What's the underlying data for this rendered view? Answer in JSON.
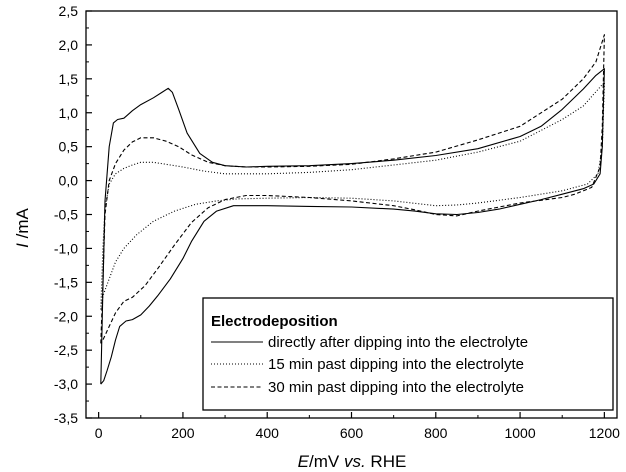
{
  "chart_data": {
    "type": "line",
    "xlabel": {
      "var": "E",
      "unit": "/mV ",
      "vs": "vs.",
      "ref": " RHE"
    },
    "ylabel": {
      "var": "I",
      "unit": " /mA"
    },
    "xlim": [
      -30,
      1230
    ],
    "ylim": [
      -3.5,
      2.5
    ],
    "x_ticks": [
      0,
      200,
      400,
      600,
      800,
      1000,
      1200
    ],
    "x_tick_labels": [
      "0",
      "200",
      "400",
      "600",
      "800",
      "1000",
      "1200"
    ],
    "y_ticks": [
      -3.5,
      -3.0,
      -2.5,
      -2.0,
      -1.5,
      -1.0,
      -0.5,
      0.0,
      0.5,
      1.0,
      1.5,
      2.0,
      2.5
    ],
    "y_tick_labels": [
      "-3,5",
      "-3,0",
      "-2,5",
      "-2,0",
      "-1,5",
      "-1,0",
      "-0,5",
      "0,0",
      "0,5",
      "1,0",
      "1,5",
      "2,0",
      "2,5"
    ],
    "grid": false,
    "legend": {
      "title": "Electrodeposition",
      "placement": "bottom-right"
    },
    "series": [
      {
        "name": "directly after dipping into the electrolyte",
        "style": "solid",
        "anodic": [
          [
            5,
            -3.0
          ],
          [
            10,
            -1.6
          ],
          [
            15,
            -0.3
          ],
          [
            25,
            0.5
          ],
          [
            35,
            0.85
          ],
          [
            45,
            0.9
          ],
          [
            60,
            0.92
          ],
          [
            80,
            1.03
          ],
          [
            100,
            1.12
          ],
          [
            130,
            1.22
          ],
          [
            150,
            1.3
          ],
          [
            165,
            1.36
          ],
          [
            175,
            1.3
          ],
          [
            190,
            1.05
          ],
          [
            210,
            0.7
          ],
          [
            240,
            0.4
          ],
          [
            270,
            0.27
          ],
          [
            300,
            0.22
          ],
          [
            350,
            0.2
          ],
          [
            400,
            0.21
          ],
          [
            500,
            0.22
          ],
          [
            600,
            0.25
          ],
          [
            700,
            0.3
          ],
          [
            800,
            0.37
          ],
          [
            900,
            0.47
          ],
          [
            1000,
            0.65
          ],
          [
            1050,
            0.8
          ],
          [
            1100,
            1.05
          ],
          [
            1150,
            1.35
          ],
          [
            1180,
            1.55
          ],
          [
            1200,
            1.65
          ]
        ],
        "cathodic": [
          [
            1200,
            1.65
          ],
          [
            1195,
            0.5
          ],
          [
            1190,
            0.1
          ],
          [
            1175,
            -0.05
          ],
          [
            1150,
            -0.12
          ],
          [
            1100,
            -0.2
          ],
          [
            1050,
            -0.28
          ],
          [
            1000,
            -0.35
          ],
          [
            950,
            -0.42
          ],
          [
            900,
            -0.47
          ],
          [
            850,
            -0.5
          ],
          [
            800,
            -0.49
          ],
          [
            750,
            -0.45
          ],
          [
            700,
            -0.42
          ],
          [
            600,
            -0.39
          ],
          [
            500,
            -0.38
          ],
          [
            400,
            -0.37
          ],
          [
            320,
            -0.37
          ],
          [
            280,
            -0.45
          ],
          [
            250,
            -0.6
          ],
          [
            220,
            -0.9
          ],
          [
            200,
            -1.15
          ],
          [
            170,
            -1.45
          ],
          [
            140,
            -1.7
          ],
          [
            120,
            -1.85
          ],
          [
            100,
            -1.98
          ],
          [
            80,
            -2.05
          ],
          [
            65,
            -2.07
          ],
          [
            50,
            -2.15
          ],
          [
            40,
            -2.35
          ],
          [
            30,
            -2.6
          ],
          [
            20,
            -2.8
          ],
          [
            12,
            -2.95
          ],
          [
            5,
            -3.0
          ]
        ]
      },
      {
        "name": "15 min past dipping into the electrolyte",
        "style": "dotted",
        "anodic": [
          [
            5,
            -1.9
          ],
          [
            10,
            -1.0
          ],
          [
            15,
            -0.4
          ],
          [
            25,
            -0.05
          ],
          [
            40,
            0.1
          ],
          [
            60,
            0.18
          ],
          [
            80,
            0.23
          ],
          [
            100,
            0.27
          ],
          [
            130,
            0.27
          ],
          [
            160,
            0.24
          ],
          [
            200,
            0.2
          ],
          [
            250,
            0.14
          ],
          [
            300,
            0.1
          ],
          [
            400,
            0.1
          ],
          [
            500,
            0.12
          ],
          [
            600,
            0.16
          ],
          [
            700,
            0.23
          ],
          [
            800,
            0.3
          ],
          [
            900,
            0.42
          ],
          [
            1000,
            0.58
          ],
          [
            1100,
            0.9
          ],
          [
            1150,
            1.1
          ],
          [
            1200,
            1.45
          ]
        ],
        "cathodic": [
          [
            1200,
            1.45
          ],
          [
            1195,
            0.5
          ],
          [
            1185,
            0.1
          ],
          [
            1160,
            -0.05
          ],
          [
            1100,
            -0.15
          ],
          [
            1000,
            -0.25
          ],
          [
            900,
            -0.33
          ],
          [
            850,
            -0.36
          ],
          [
            800,
            -0.37
          ],
          [
            700,
            -0.3
          ],
          [
            600,
            -0.26
          ],
          [
            500,
            -0.25
          ],
          [
            400,
            -0.26
          ],
          [
            330,
            -0.27
          ],
          [
            280,
            -0.3
          ],
          [
            230,
            -0.35
          ],
          [
            180,
            -0.45
          ],
          [
            130,
            -0.6
          ],
          [
            90,
            -0.8
          ],
          [
            60,
            -1.0
          ],
          [
            40,
            -1.2
          ],
          [
            25,
            -1.45
          ],
          [
            10,
            -1.7
          ],
          [
            5,
            -1.9
          ]
        ]
      },
      {
        "name": "30 min past dipping into the electrolyte",
        "style": "dashed",
        "anodic": [
          [
            5,
            -2.4
          ],
          [
            10,
            -1.5
          ],
          [
            15,
            -0.5
          ],
          [
            25,
            0.0
          ],
          [
            40,
            0.25
          ],
          [
            60,
            0.45
          ],
          [
            80,
            0.57
          ],
          [
            100,
            0.63
          ],
          [
            130,
            0.63
          ],
          [
            160,
            0.58
          ],
          [
            190,
            0.5
          ],
          [
            220,
            0.38
          ],
          [
            260,
            0.27
          ],
          [
            300,
            0.22
          ],
          [
            350,
            0.2
          ],
          [
            400,
            0.2
          ],
          [
            500,
            0.21
          ],
          [
            600,
            0.24
          ],
          [
            700,
            0.32
          ],
          [
            800,
            0.42
          ],
          [
            900,
            0.6
          ],
          [
            1000,
            0.8
          ],
          [
            1100,
            1.2
          ],
          [
            1150,
            1.5
          ],
          [
            1180,
            1.75
          ],
          [
            1200,
            2.15
          ]
        ],
        "cathodic": [
          [
            1200,
            2.15
          ],
          [
            1195,
            0.8
          ],
          [
            1190,
            0.2
          ],
          [
            1170,
            -0.1
          ],
          [
            1130,
            -0.2
          ],
          [
            1100,
            -0.25
          ],
          [
            1000,
            -0.33
          ],
          [
            900,
            -0.45
          ],
          [
            850,
            -0.52
          ],
          [
            800,
            -0.5
          ],
          [
            750,
            -0.43
          ],
          [
            700,
            -0.37
          ],
          [
            600,
            -0.3
          ],
          [
            500,
            -0.25
          ],
          [
            400,
            -0.22
          ],
          [
            350,
            -0.22
          ],
          [
            300,
            -0.28
          ],
          [
            260,
            -0.4
          ],
          [
            220,
            -0.62
          ],
          [
            180,
            -0.95
          ],
          [
            140,
            -1.3
          ],
          [
            110,
            -1.55
          ],
          [
            80,
            -1.72
          ],
          [
            60,
            -1.78
          ],
          [
            40,
            -1.95
          ],
          [
            25,
            -2.15
          ],
          [
            10,
            -2.35
          ],
          [
            5,
            -2.4
          ]
        ]
      }
    ]
  }
}
